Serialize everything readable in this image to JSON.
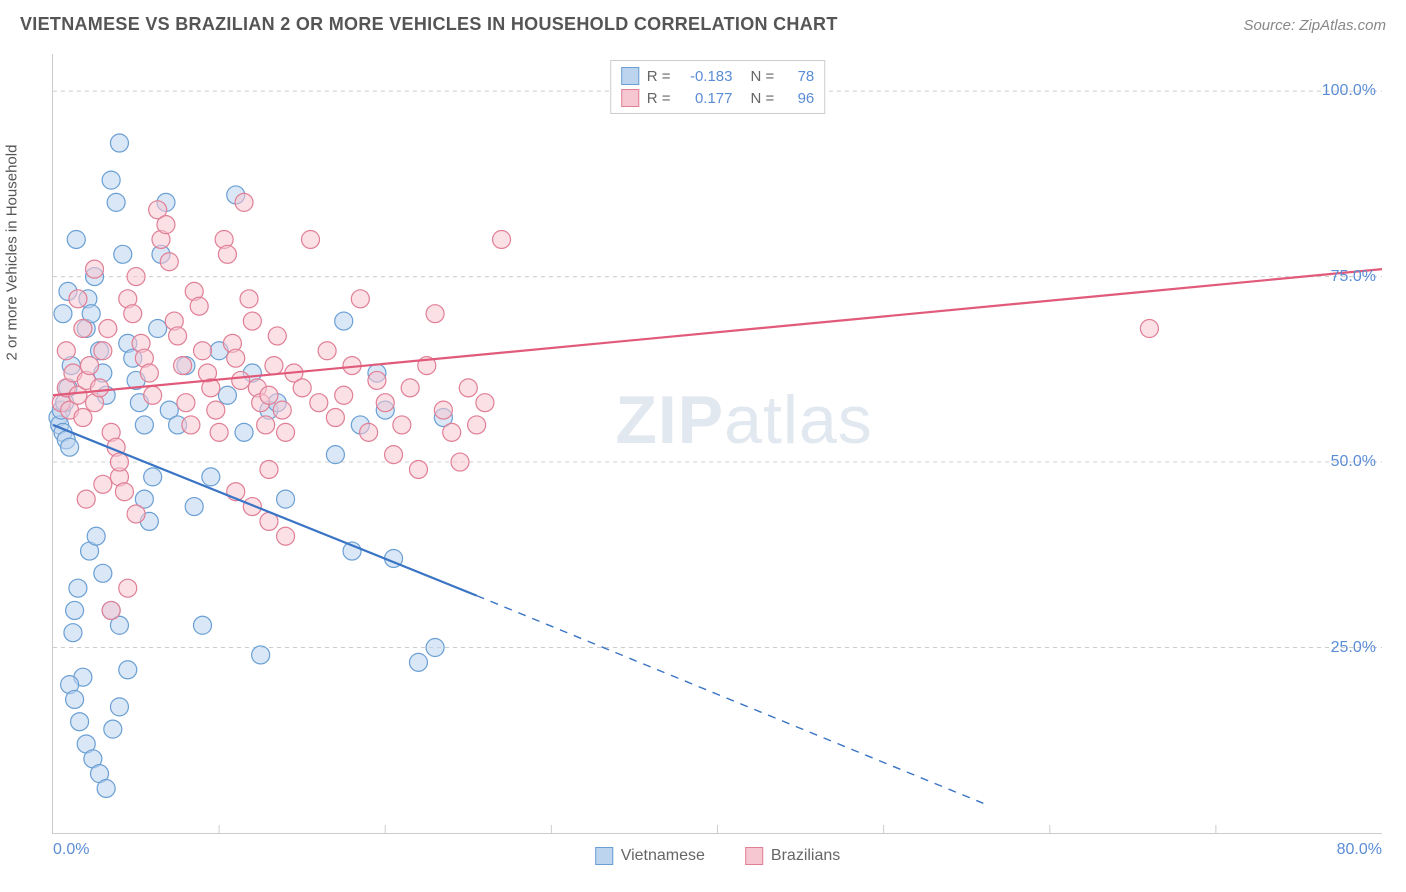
{
  "title": "VIETNAMESE VS BRAZILIAN 2 OR MORE VEHICLES IN HOUSEHOLD CORRELATION CHART",
  "source": "Source: ZipAtlas.com",
  "watermark_a": "ZIP",
  "watermark_b": "atlas",
  "chart": {
    "type": "scatter",
    "ylabel": "2 or more Vehicles in Household",
    "xlim": [
      0,
      80
    ],
    "ylim": [
      0,
      105
    ],
    "y_ticks": [
      25,
      50,
      75,
      100
    ],
    "y_tick_labels": [
      "25.0%",
      "50.0%",
      "75.0%",
      "100.0%"
    ],
    "x_ticks_minor": [
      10,
      20,
      30,
      40,
      50,
      60,
      70
    ],
    "x_min_label": "0.0%",
    "x_max_label": "80.0%",
    "grid_color": "#cccccc",
    "axis_color": "#cccccc",
    "background_color": "#ffffff",
    "marker_radius": 9,
    "marker_stroke_width": 1.2,
    "trend_line_width": 2.2,
    "series": [
      {
        "name": "Vietnamese",
        "fill": "#bcd4ee",
        "stroke": "#6a9fd4",
        "fill_opacity": 0.55,
        "legend_r": "-0.183",
        "legend_n": "78",
        "trend": {
          "x1": 0,
          "y1": 55,
          "x2": 25.5,
          "y2": 32,
          "color": "#3a74c4",
          "dash_beyond_x": 25.5,
          "x2_ext": 56,
          "y2_ext": 4
        },
        "points": [
          [
            0.3,
            56
          ],
          [
            0.4,
            55
          ],
          [
            0.5,
            57
          ],
          [
            0.6,
            54
          ],
          [
            0.7,
            58
          ],
          [
            0.8,
            53
          ],
          [
            0.9,
            60
          ],
          [
            1.0,
            52
          ],
          [
            1.1,
            63
          ],
          [
            1.2,
            27
          ],
          [
            1.3,
            30
          ],
          [
            1.5,
            33
          ],
          [
            1.8,
            21
          ],
          [
            2.0,
            68
          ],
          [
            2.1,
            72
          ],
          [
            2.3,
            70
          ],
          [
            2.5,
            75
          ],
          [
            2.8,
            65
          ],
          [
            3.0,
            62
          ],
          [
            3.2,
            59
          ],
          [
            3.5,
            88
          ],
          [
            3.8,
            85
          ],
          [
            4.0,
            93
          ],
          [
            4.2,
            78
          ],
          [
            4.5,
            66
          ],
          [
            4.8,
            64
          ],
          [
            5.0,
            61
          ],
          [
            5.2,
            58
          ],
          [
            5.5,
            45
          ],
          [
            5.8,
            42
          ],
          [
            6.0,
            48
          ],
          [
            6.3,
            68
          ],
          [
            6.5,
            78
          ],
          [
            6.8,
            85
          ],
          [
            7.0,
            57
          ],
          [
            7.5,
            55
          ],
          [
            8.0,
            63
          ],
          [
            8.5,
            44
          ],
          [
            9.0,
            28
          ],
          [
            9.5,
            48
          ],
          [
            10.0,
            65
          ],
          [
            10.5,
            59
          ],
          [
            11.0,
            86
          ],
          [
            11.5,
            54
          ],
          [
            12.0,
            62
          ],
          [
            12.5,
            24
          ],
          [
            13.0,
            57
          ],
          [
            13.5,
            58
          ],
          [
            14.0,
            45
          ],
          [
            1.0,
            20
          ],
          [
            1.3,
            18
          ],
          [
            1.6,
            15
          ],
          [
            2.0,
            12
          ],
          [
            2.4,
            10
          ],
          [
            2.8,
            8
          ],
          [
            3.2,
            6
          ],
          [
            3.6,
            14
          ],
          [
            4.0,
            17
          ],
          [
            4.5,
            22
          ],
          [
            2.2,
            38
          ],
          [
            2.6,
            40
          ],
          [
            3.0,
            35
          ],
          [
            3.5,
            30
          ],
          [
            4.0,
            28
          ],
          [
            0.6,
            70
          ],
          [
            0.9,
            73
          ],
          [
            1.4,
            80
          ],
          [
            5.5,
            55
          ],
          [
            17.0,
            51
          ],
          [
            18.5,
            55
          ],
          [
            20.0,
            57
          ],
          [
            20.5,
            37
          ],
          [
            18.0,
            38
          ],
          [
            22.0,
            23
          ],
          [
            23.0,
            25
          ],
          [
            19.5,
            62
          ],
          [
            17.5,
            69
          ],
          [
            23.5,
            56
          ]
        ]
      },
      {
        "name": "Brazilians",
        "fill": "#f7c7d1",
        "stroke": "#e07f95",
        "fill_opacity": 0.55,
        "legend_r": "0.177",
        "legend_n": "96",
        "trend": {
          "x1": 0,
          "y1": 59,
          "x2": 80,
          "y2": 76,
          "color": "#e15a7a"
        },
        "points": [
          [
            0.5,
            58
          ],
          [
            0.8,
            60
          ],
          [
            1.0,
            57
          ],
          [
            1.2,
            62
          ],
          [
            1.5,
            59
          ],
          [
            1.8,
            56
          ],
          [
            2.0,
            61
          ],
          [
            2.2,
            63
          ],
          [
            2.5,
            58
          ],
          [
            2.8,
            60
          ],
          [
            3.0,
            65
          ],
          [
            3.3,
            68
          ],
          [
            3.5,
            54
          ],
          [
            3.8,
            52
          ],
          [
            4.0,
            48
          ],
          [
            4.3,
            46
          ],
          [
            4.5,
            72
          ],
          [
            4.8,
            70
          ],
          [
            5.0,
            75
          ],
          [
            5.3,
            66
          ],
          [
            5.5,
            64
          ],
          [
            5.8,
            62
          ],
          [
            6.0,
            59
          ],
          [
            6.3,
            84
          ],
          [
            6.5,
            80
          ],
          [
            6.8,
            82
          ],
          [
            7.0,
            77
          ],
          [
            7.3,
            69
          ],
          [
            7.5,
            67
          ],
          [
            7.8,
            63
          ],
          [
            8.0,
            58
          ],
          [
            8.3,
            55
          ],
          [
            8.5,
            73
          ],
          [
            8.8,
            71
          ],
          [
            9.0,
            65
          ],
          [
            9.3,
            62
          ],
          [
            9.5,
            60
          ],
          [
            9.8,
            57
          ],
          [
            10.0,
            54
          ],
          [
            10.3,
            80
          ],
          [
            10.5,
            78
          ],
          [
            10.8,
            66
          ],
          [
            11.0,
            64
          ],
          [
            11.3,
            61
          ],
          [
            11.5,
            85
          ],
          [
            11.8,
            72
          ],
          [
            12.0,
            69
          ],
          [
            12.3,
            60
          ],
          [
            12.5,
            58
          ],
          [
            12.8,
            55
          ],
          [
            13.0,
            59
          ],
          [
            13.3,
            63
          ],
          [
            13.5,
            67
          ],
          [
            13.8,
            57
          ],
          [
            14.0,
            54
          ],
          [
            14.5,
            62
          ],
          [
            15.0,
            60
          ],
          [
            15.5,
            80
          ],
          [
            16.0,
            58
          ],
          [
            16.5,
            65
          ],
          [
            17.0,
            56
          ],
          [
            17.5,
            59
          ],
          [
            18.0,
            63
          ],
          [
            18.5,
            72
          ],
          [
            19.0,
            54
          ],
          [
            19.5,
            61
          ],
          [
            20.0,
            58
          ],
          [
            20.5,
            51
          ],
          [
            21.0,
            55
          ],
          [
            21.5,
            60
          ],
          [
            22.0,
            49
          ],
          [
            22.5,
            63
          ],
          [
            23.0,
            70
          ],
          [
            23.5,
            57
          ],
          [
            24.0,
            54
          ],
          [
            24.5,
            50
          ],
          [
            25.0,
            60
          ],
          [
            25.5,
            55
          ],
          [
            26.0,
            58
          ],
          [
            27.0,
            80
          ],
          [
            11.0,
            46
          ],
          [
            12.0,
            44
          ],
          [
            13.0,
            42
          ],
          [
            14.0,
            40
          ],
          [
            13.0,
            49
          ],
          [
            2.0,
            45
          ],
          [
            3.0,
            47
          ],
          [
            4.0,
            50
          ],
          [
            5.0,
            43
          ],
          [
            3.5,
            30
          ],
          [
            4.5,
            33
          ],
          [
            66.0,
            68
          ],
          [
            1.5,
            72
          ],
          [
            2.5,
            76
          ],
          [
            0.8,
            65
          ],
          [
            1.8,
            68
          ]
        ]
      }
    ],
    "legend_bottom": [
      {
        "label": "Vietnamese",
        "fill": "#bcd4ee",
        "stroke": "#6a9fd4"
      },
      {
        "label": "Brazilians",
        "fill": "#f7c7d1",
        "stroke": "#e07f95"
      }
    ]
  }
}
